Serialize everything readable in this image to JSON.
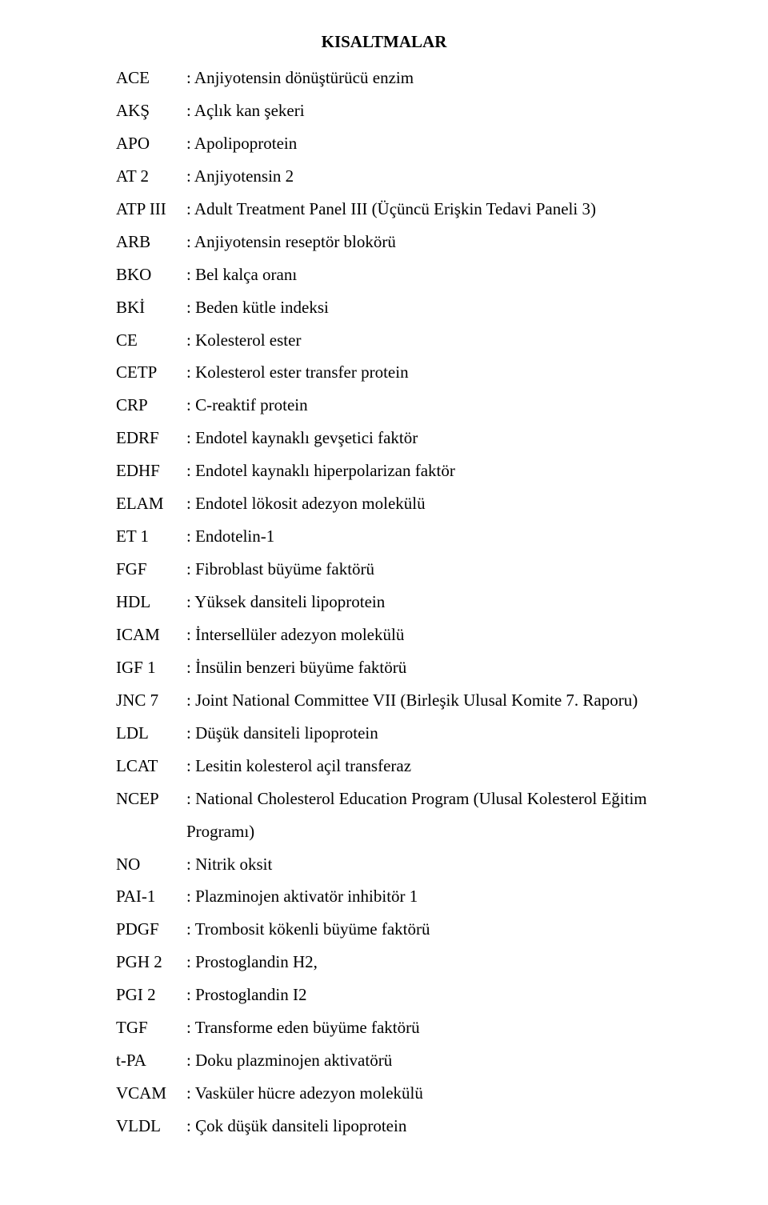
{
  "title": "KISALTMALAR",
  "rows": [
    {
      "abbr": "ACE",
      "def": ": Anjiyotensin dönüştürücü enzim"
    },
    {
      "abbr": "AKŞ",
      "def": ": Açlık kan şekeri"
    },
    {
      "abbr": "APO",
      "def": ": Apolipoprotein"
    },
    {
      "abbr": "AT 2",
      "def": ": Anjiyotensin 2"
    },
    {
      "abbr": "ATP III",
      "def": ": Adult Treatment Panel III (Üçüncü Erişkin Tedavi Paneli 3)"
    },
    {
      "abbr": "ARB",
      "def": ": Anjiyotensin reseptör blokörü"
    },
    {
      "abbr": "BKO",
      "def": ": Bel kalça oranı"
    },
    {
      "abbr": "BKİ",
      "def": ": Beden kütle indeksi"
    },
    {
      "abbr": "CE",
      "def": ": Kolesterol ester"
    },
    {
      "abbr": "CETP",
      "def": ": Kolesterol ester transfer protein"
    },
    {
      "abbr": "CRP",
      "def": ": C-reaktif protein"
    },
    {
      "abbr": "EDRF",
      "def": ": Endotel kaynaklı gevşetici faktör"
    },
    {
      "abbr": "EDHF",
      "def": ": Endotel kaynaklı hiperpolarizan faktör"
    },
    {
      "abbr": "ELAM",
      "def": ": Endotel lökosit adezyon molekülü"
    },
    {
      "abbr": "ET 1",
      "def": ": Endotelin-1"
    },
    {
      "abbr": "FGF",
      "def": ": Fibroblast büyüme faktörü"
    },
    {
      "abbr": "HDL",
      "def": ": Yüksek dansiteli lipoprotein"
    },
    {
      "abbr": "ICAM",
      "def": ": İntersellüler adezyon molekülü"
    },
    {
      "abbr": "IGF 1",
      "def": ": İnsülin benzeri büyüme faktörü"
    },
    {
      "abbr": "JNC 7",
      "def": ": Joint National Committee VII (Birleşik Ulusal Komite 7. Raporu)"
    },
    {
      "abbr": "LDL",
      "def": ": Düşük dansiteli lipoprotein"
    },
    {
      "abbr": "LCAT",
      "def": ": Lesitin kolesterol açil transferaz"
    },
    {
      "abbr": "NCEP",
      "def": ": National Cholesterol Education Program (Ulusal Kolesterol Eğitim Programı)"
    },
    {
      "abbr": "NO",
      "def": ": Nitrik oksit"
    },
    {
      "abbr": "PAI-1",
      "def": ": Plazminojen aktivatör inhibitör 1"
    },
    {
      "abbr": "PDGF",
      "def": ": Trombosit  kökenli büyüme faktörü"
    },
    {
      "abbr": "PGH 2",
      "def": ": Prostoglandin H2,"
    },
    {
      "abbr": "PGI 2",
      "def": ": Prostoglandin I2"
    },
    {
      "abbr": "TGF",
      "def": ": Transforme eden büyüme faktörü"
    },
    {
      "abbr": "t-PA",
      "def": ": Doku plazminojen  aktivatörü"
    },
    {
      "abbr": "VCAM",
      "def": ": Vasküler hücre adezyon molekülü"
    },
    {
      "abbr": "VLDL",
      "def": ": Çok düşük dansiteli lipoprotein"
    }
  ]
}
